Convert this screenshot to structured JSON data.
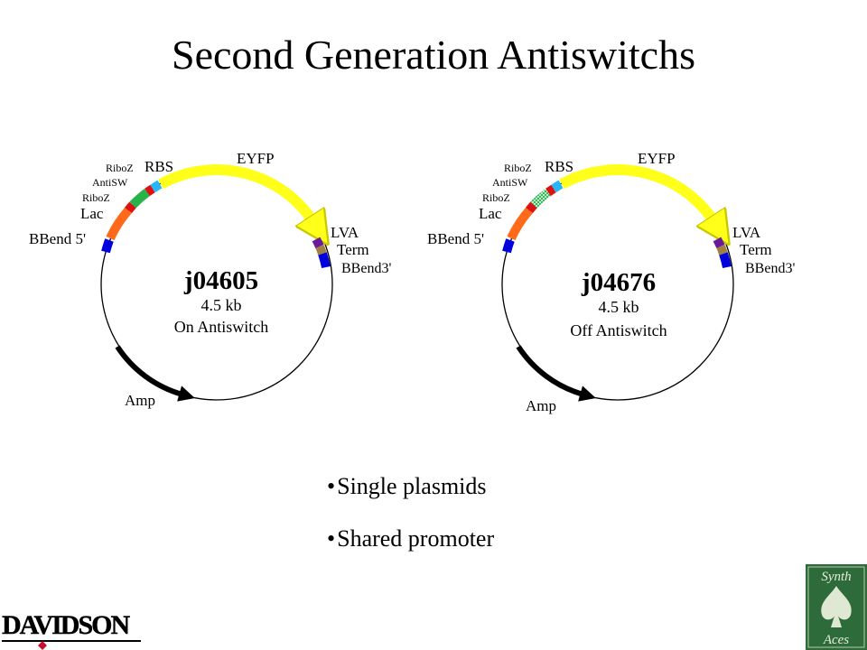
{
  "slide": {
    "title": "Second Generation Antiswitchs"
  },
  "plasmids": [
    {
      "name": "j04605",
      "size": "4.5 kb",
      "description": "On Antiswitch",
      "labels": {
        "riboz_top": "RiboZ",
        "rbs": "RBS",
        "eyfp": "EYFP",
        "antisw": "AntiSW",
        "riboz_bottom": "RiboZ",
        "lac": "Lac",
        "bbend5": "BBend 5'",
        "lva": "LVA",
        "term": "Term",
        "bbend3": "BBend3'",
        "amp": "Amp"
      },
      "antisw_style": "solid-green"
    },
    {
      "name": "j04676",
      "size": "4.5 kb",
      "description": "Off Antiswitch",
      "labels": {
        "riboz_top": "RiboZ",
        "rbs": "RBS",
        "eyfp": "EYFP",
        "antisw": "AntiSW",
        "riboz_bottom": "RiboZ",
        "lac": "Lac",
        "bbend5": "BBend 5'",
        "lva": "LVA",
        "term": "Term",
        "bbend3": "BBend3'",
        "amp": "Amp"
      },
      "antisw_style": "green-crosshatch"
    }
  ],
  "bullets": [
    "Single plasmids",
    "Shared promoter"
  ],
  "logos": {
    "davidson": "DAVIDSON",
    "synth": "Synth",
    "aces": "Aces"
  },
  "colors": {
    "bbend": "#0000dd",
    "lac": "#ff6a1a",
    "riboz": "#e01010",
    "antisw": "#27b34a",
    "rbs": "#29b6f6",
    "eyfp": "#ffff1a",
    "lva": "#6a1b9a",
    "term": "#a08040",
    "amp": "#000000",
    "davidson_red": "#c8102e",
    "aces_green": "#2e6b3a"
  }
}
